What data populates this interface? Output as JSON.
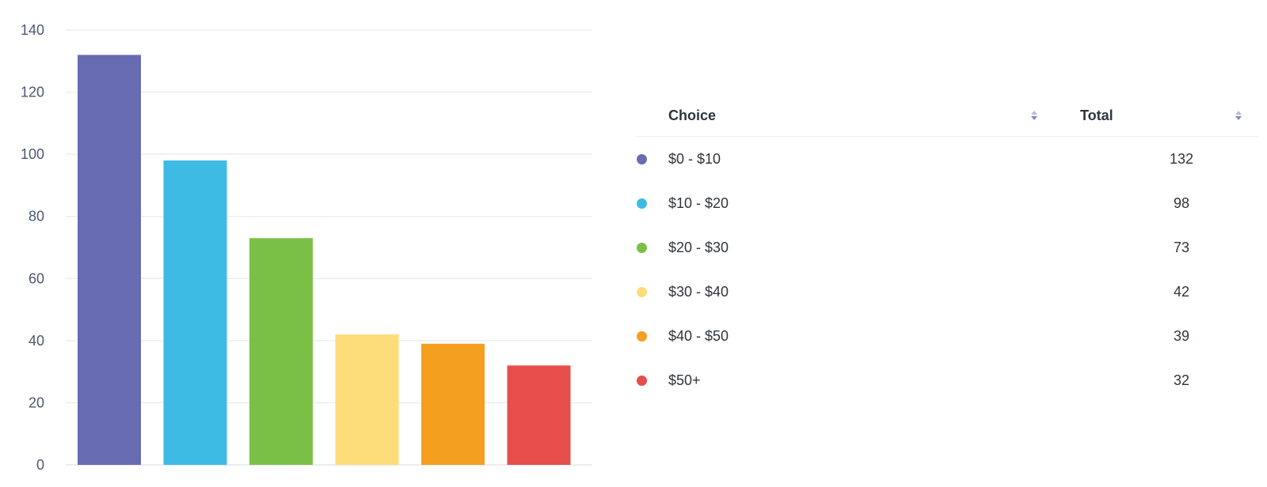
{
  "chart_data": {
    "type": "bar",
    "categories": [
      "$0 - $10",
      "$10 - $20",
      "$20 - $30",
      "$30 - $40",
      "$40 - $50",
      "$50+"
    ],
    "values": [
      132,
      98,
      73,
      42,
      39,
      32
    ],
    "colors": [
      "#676cb2",
      "#3dbbe5",
      "#7bc046",
      "#fddc7a",
      "#f49f20",
      "#e64e4c"
    ],
    "ylim": [
      0,
      140
    ],
    "yticks": [
      0,
      20,
      40,
      60,
      80,
      100,
      120,
      140
    ],
    "grid": true,
    "title": "",
    "xlabel": "",
    "ylabel": ""
  },
  "table": {
    "headers": {
      "choice": "Choice",
      "total": "Total"
    },
    "rows": [
      {
        "choice": "$0 - $10",
        "total": "132",
        "color": "#676cb2"
      },
      {
        "choice": "$10 - $20",
        "total": "98",
        "color": "#3dbbe5"
      },
      {
        "choice": "$20 - $30",
        "total": "73",
        "color": "#7bc046"
      },
      {
        "choice": "$30 - $40",
        "total": "42",
        "color": "#fddc7a"
      },
      {
        "choice": "$40 - $50",
        "total": "39",
        "color": "#f49f20"
      },
      {
        "choice": "$50+",
        "total": "32",
        "color": "#e64e4c"
      }
    ]
  },
  "icons": {
    "sort": "sort-icon",
    "legend_dot": "circle"
  }
}
